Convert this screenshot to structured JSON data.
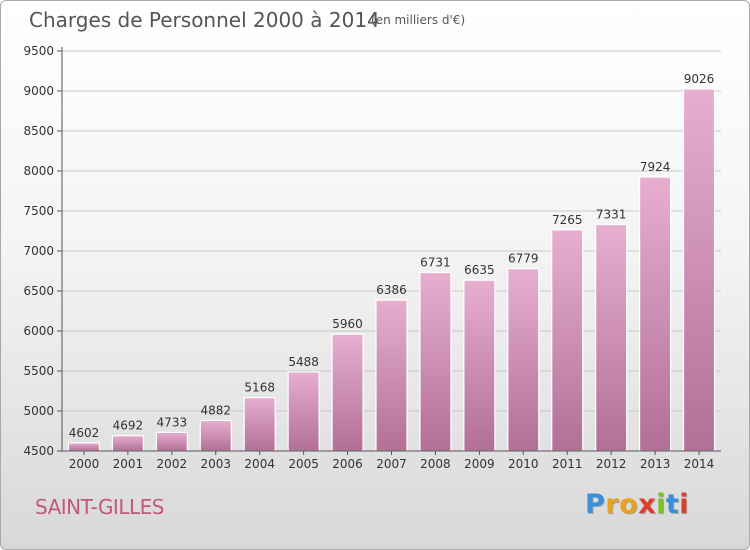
{
  "header": {
    "title": "Charges de Personnel 2000 à 2014",
    "subtitle": "(en milliers d'€)"
  },
  "place_name": "SAINT-GILLES",
  "logo": {
    "text": "Proxiti",
    "letter_colors": [
      "#3b8fd8",
      "#e8a21c",
      "#e8a21c",
      "#e03c2c",
      "#7bbf2a",
      "#3b8fd8",
      "#e03c2c"
    ]
  },
  "colors": {
    "bar_top": "#e7aed0",
    "bar_bottom": "#b26f98",
    "axis": "#555555",
    "grid": "#c9c9c9"
  },
  "chart_data": {
    "type": "bar",
    "title": "Charges de Personnel 2000 à 2014",
    "subtitle": "(en milliers d'€)",
    "categories": [
      "2000",
      "2001",
      "2002",
      "2003",
      "2004",
      "2005",
      "2006",
      "2007",
      "2008",
      "2009",
      "2010",
      "2011",
      "2012",
      "2013",
      "2014"
    ],
    "values": [
      4602,
      4692,
      4733,
      4882,
      5168,
      5488,
      5960,
      6386,
      6731,
      6635,
      6779,
      7265,
      7331,
      7924,
      9026
    ],
    "ylim": [
      4500,
      9500
    ],
    "yticks": [
      4500,
      5000,
      5500,
      6000,
      6500,
      7000,
      7500,
      8000,
      8500,
      9000,
      9500
    ],
    "grid": true,
    "data_labels": true
  }
}
